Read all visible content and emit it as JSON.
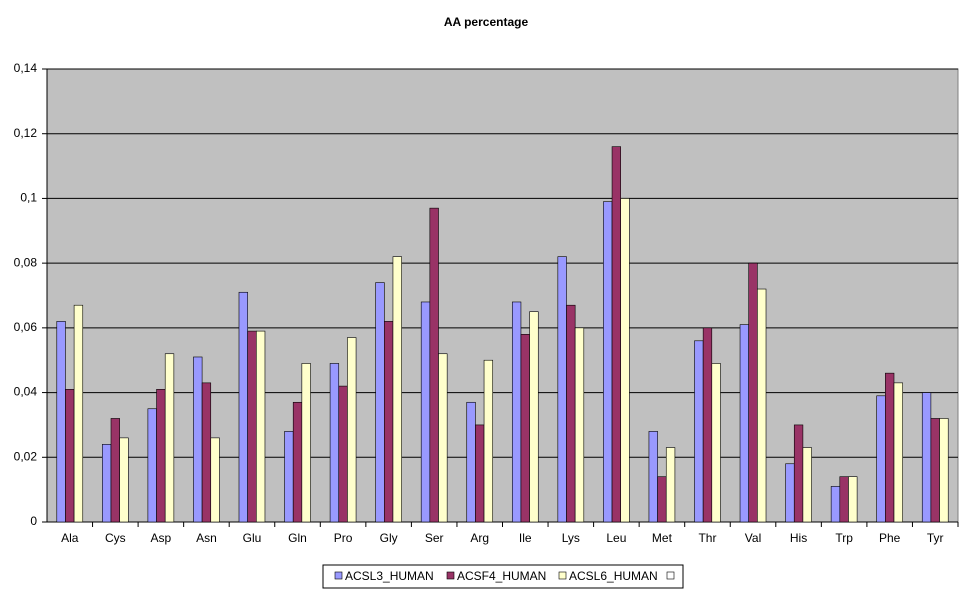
{
  "chart_data": {
    "type": "bar",
    "title": "AA percentage",
    "categories": [
      "Ala",
      "Cys",
      "Asp",
      "Asn",
      "Glu",
      "Gln",
      "Pro",
      "Gly",
      "Ser",
      "Arg",
      "Ile",
      "Lys",
      "Leu",
      "Met",
      "Thr",
      "Val",
      "His",
      "Trp",
      "Phe",
      "Tyr"
    ],
    "series": [
      {
        "name": "ACSL3_HUMAN",
        "color": "#9999ff",
        "values": [
          0.062,
          0.024,
          0.035,
          0.051,
          0.071,
          0.028,
          0.049,
          0.074,
          0.068,
          0.037,
          0.068,
          0.082,
          0.099,
          0.028,
          0.056,
          0.061,
          0.018,
          0.011,
          0.039,
          0.04
        ]
      },
      {
        "name": "ACSF4_HUMAN",
        "color": "#993366",
        "values": [
          0.041,
          0.032,
          0.041,
          0.043,
          0.059,
          0.037,
          0.042,
          0.062,
          0.097,
          0.03,
          0.058,
          0.067,
          0.116,
          0.014,
          0.06,
          0.08,
          0.03,
          0.014,
          0.046,
          0.032
        ]
      },
      {
        "name": "ACSL6_HUMAN",
        "color": "#ffffcc",
        "values": [
          0.067,
          0.026,
          0.052,
          0.026,
          0.059,
          0.049,
          0.057,
          0.082,
          0.052,
          0.05,
          0.065,
          0.06,
          0.1,
          0.023,
          0.049,
          0.072,
          0.023,
          0.014,
          0.043,
          0.032
        ]
      }
    ],
    "ylim": [
      0,
      0.14
    ],
    "yticks": [
      0,
      {
        "value": 0.02,
        "label": "0,02"
      },
      {
        "value": 0.04,
        "label": "0,04"
      },
      {
        "value": 0.06,
        "label": "0,06"
      },
      {
        "value": 0.08,
        "label": "0,08"
      },
      {
        "value": 0.1,
        "label": "0,1"
      },
      {
        "value": 0.12,
        "label": "0,12"
      },
      {
        "value": 0.14,
        "label": "0,14"
      }
    ],
    "grid": true,
    "legend": "bottom",
    "background": "#c0c0c0"
  }
}
